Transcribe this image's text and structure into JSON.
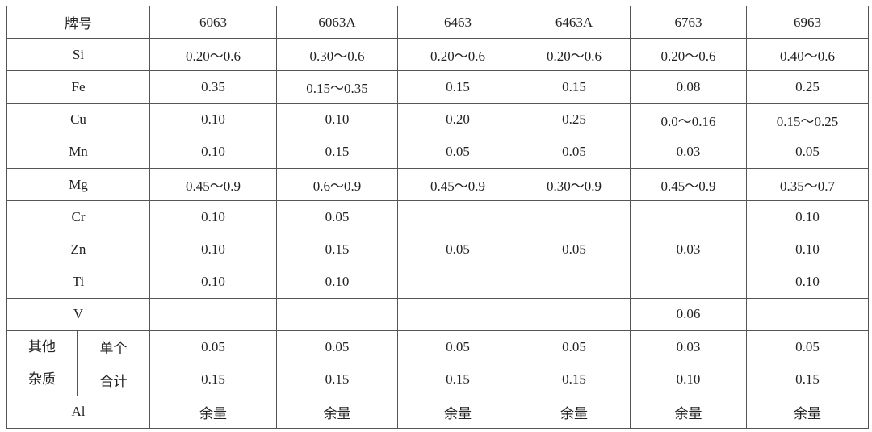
{
  "table": {
    "header": [
      "牌号",
      "6063",
      "6063A",
      "6463",
      "6463A",
      "6763",
      "6963"
    ],
    "rows": [
      {
        "label": "Si",
        "values": [
          "0.20～0.6",
          "0.30～0.6",
          "0.20～0.6",
          "0.20～0.6",
          "0.20～0.6",
          "0.40～0.6"
        ]
      },
      {
        "label": "Fe",
        "values": [
          "0.35",
          "0.15～0.35",
          "0.15",
          "0.15",
          "0.08",
          "0.25"
        ]
      },
      {
        "label": "Cu",
        "values": [
          "0.10",
          "0.10",
          "0.20",
          "0.25",
          "0.0～0.16",
          "0.15～0.25"
        ]
      },
      {
        "label": "Mn",
        "values": [
          "0.10",
          "0.15",
          "0.05",
          "0.05",
          "0.03",
          "0.05"
        ]
      },
      {
        "label": "Mg",
        "values": [
          "0.45～0.9",
          "0.6～0.9",
          "0.45～0.9",
          "0.30～0.9",
          "0.45～0.9",
          "0.35～0.7"
        ]
      },
      {
        "label": "Cr",
        "values": [
          "0.10",
          "0.05",
          null,
          null,
          null,
          "0.10"
        ]
      },
      {
        "label": "Zn",
        "values": [
          "0.10",
          "0.15",
          "0.05",
          "0.05",
          "0.03",
          "0.10"
        ]
      },
      {
        "label": "Ti",
        "values": [
          "0.10",
          "0.10",
          null,
          null,
          null,
          "0.10"
        ]
      },
      {
        "label": "V",
        "values": [
          null,
          null,
          null,
          null,
          "0.06",
          null
        ]
      }
    ],
    "other": {
      "label_lines": [
        "其他",
        "杂质"
      ],
      "rows": [
        {
          "label": "单个",
          "values": [
            "0.05",
            "0.05",
            "0.05",
            "0.05",
            "0.03",
            "0.05"
          ]
        },
        {
          "label": "合计",
          "values": [
            "0.15",
            "0.15",
            "0.15",
            "0.15",
            "0.10",
            "0.15"
          ]
        }
      ]
    },
    "al": {
      "label": "Al",
      "values": [
        "余量",
        "余量",
        "余量",
        "余量",
        "余量",
        "余量"
      ]
    }
  }
}
